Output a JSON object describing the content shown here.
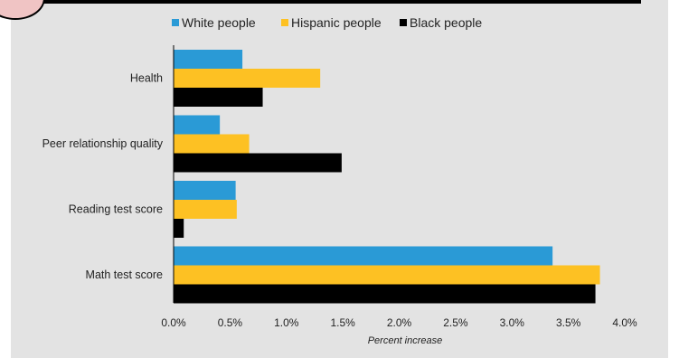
{
  "chart_data": {
    "type": "bar",
    "orientation": "horizontal",
    "categories": [
      "Health",
      "Peer relationship quality",
      "Reading test score",
      "Math test score"
    ],
    "series": [
      {
        "name": "White people",
        "color": "#2a9ad6",
        "values": [
          0.61,
          0.41,
          0.55,
          3.36
        ]
      },
      {
        "name": "Hispanic people",
        "color": "#fdc123",
        "values": [
          1.3,
          0.67,
          0.56,
          3.78
        ]
      },
      {
        "name": "Black people",
        "color": "#000000",
        "values": [
          0.79,
          1.49,
          0.09,
          3.74
        ]
      }
    ],
    "xlabel": "Percent increase",
    "xlim": [
      0,
      4.0
    ],
    "xticks": [
      "0.0%",
      "0.5%",
      "1.0%",
      "1.5%",
      "2.0%",
      "2.5%",
      "3.0%",
      "3.5%",
      "4.0%"
    ],
    "xtick_values": [
      0,
      0.5,
      1.0,
      1.5,
      2.0,
      2.5,
      3.0,
      3.5,
      4.0
    ],
    "legend_position": "top",
    "grid": false
  }
}
